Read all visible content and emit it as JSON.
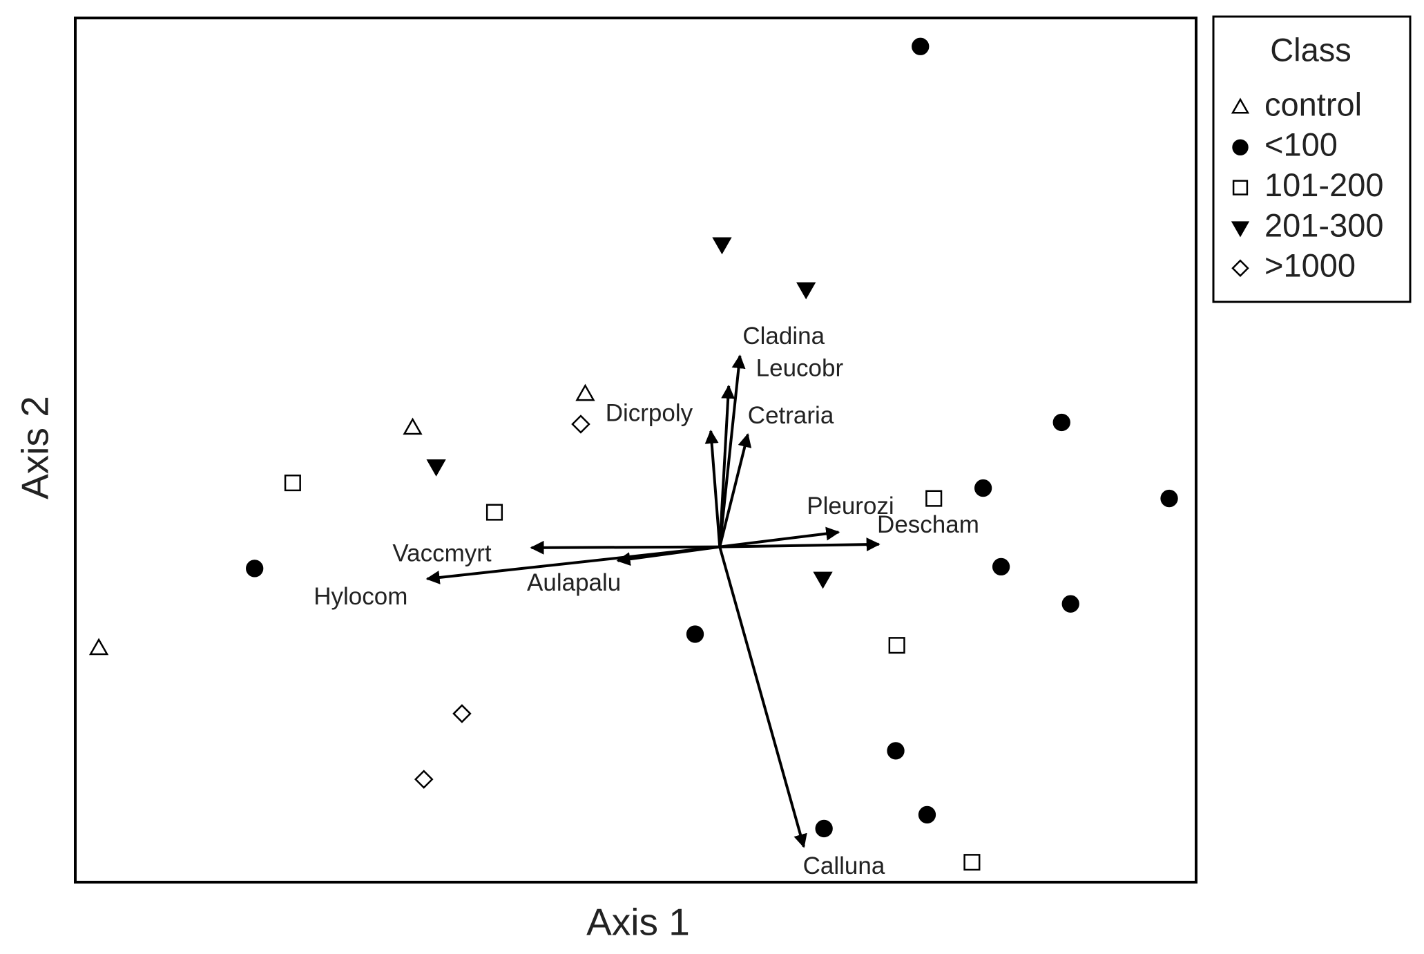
{
  "chart_data": {
    "type": "scatter",
    "x_label": "Axis 1",
    "y_label": "Axis 2",
    "xlim": [
      0,
      100
    ],
    "ylim": [
      0,
      100
    ],
    "legend_title": "Class",
    "legend": "outside-right",
    "color": "#000000",
    "series": [
      {
        "name": "control",
        "marker": "triangle",
        "filled": false,
        "x": [
          45.5,
          30.1,
          2.1
        ],
        "y": [
          56.5,
          52.6,
          27.1
        ]
      },
      {
        "name": "<100",
        "marker": "circle",
        "filled": true,
        "x": [
          75.4,
          88.0,
          81.0,
          97.6,
          82.6,
          88.8,
          16.0,
          55.3,
          73.2,
          76.0,
          66.8
        ],
        "y": [
          96.7,
          53.2,
          45.6,
          44.4,
          36.5,
          32.2,
          36.3,
          28.7,
          15.2,
          7.8,
          6.2
        ]
      },
      {
        "name": "101-200",
        "marker": "square",
        "filled": false,
        "x": [
          19.4,
          37.4,
          76.6,
          73.3,
          80.0
        ],
        "y": [
          46.2,
          42.8,
          44.4,
          27.4,
          2.3
        ]
      },
      {
        "name": "201-300",
        "marker": "triangle-down",
        "filled": true,
        "x": [
          57.7,
          65.2,
          32.2,
          66.7
        ],
        "y": [
          73.8,
          68.6,
          48.1,
          35.1
        ]
      },
      {
        "name": ">1000",
        "marker": "diamond",
        "filled": false,
        "x": [
          45.1,
          34.5,
          31.1
        ],
        "y": [
          53.0,
          19.5,
          11.9
        ]
      }
    ],
    "vector_origin": {
      "x": 57.5,
      "y": 38.8
    },
    "vectors": [
      {
        "name": "Cladina",
        "x": 59.3,
        "y": 60.9
      },
      {
        "name": "Leucobr",
        "x": 58.3,
        "y": 57.4
      },
      {
        "name": "Cetraria",
        "x": 60.0,
        "y": 51.8
      },
      {
        "name": "Dicrpoly",
        "x": 56.7,
        "y": 52.2
      },
      {
        "name": "Pleurozi",
        "x": 68.1,
        "y": 40.5
      },
      {
        "name": "Descham",
        "x": 71.7,
        "y": 39.1
      },
      {
        "name": "Vaccmyrt",
        "x": 40.7,
        "y": 38.7
      },
      {
        "name": "Aulapalu",
        "x": 48.4,
        "y": 37.2
      },
      {
        "name": "Hylocom",
        "x": 31.4,
        "y": 35.1
      },
      {
        "name": "Calluna",
        "x": 65.0,
        "y": 4.1
      }
    ]
  }
}
